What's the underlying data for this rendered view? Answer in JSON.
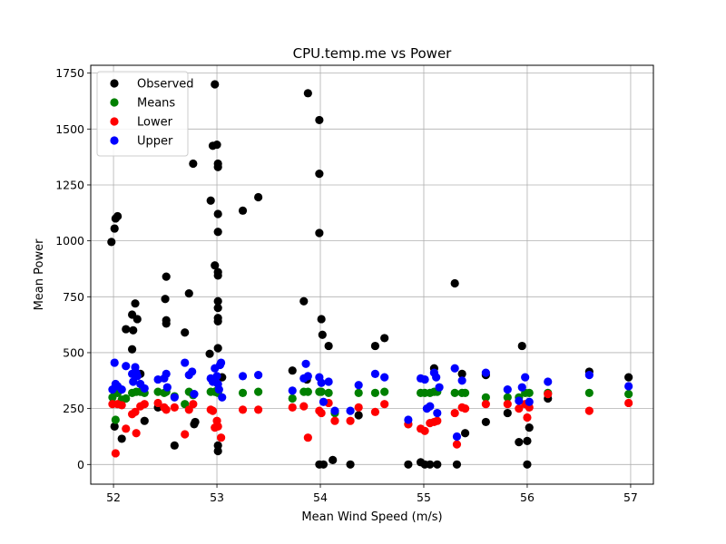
{
  "chart_data": {
    "type": "scatter",
    "title": "CPU.temp.me vs Power",
    "xlabel": "Mean Wind Speed (m/s)",
    "ylabel": "Mean Power",
    "xlim": [
      51.78,
      57.22
    ],
    "ylim": [
      -88,
      1785
    ],
    "xticks": [
      52,
      53,
      54,
      55,
      56,
      57
    ],
    "yticks": [
      0,
      250,
      500,
      750,
      1000,
      1250,
      1500,
      1750
    ],
    "grid": true,
    "legend_position": "top-left",
    "series": [
      {
        "name": "Observed",
        "color": "#000000",
        "points": [
          [
            51.98,
            995
          ],
          [
            52.01,
            1055
          ],
          [
            52.02,
            1100
          ],
          [
            52.04,
            1110
          ],
          [
            52.01,
            170
          ],
          [
            52.08,
            115
          ],
          [
            52.12,
            605
          ],
          [
            52.18,
            515
          ],
          [
            52.19,
            600
          ],
          [
            52.18,
            670
          ],
          [
            52.21,
            720
          ],
          [
            52.23,
            650
          ],
          [
            52.26,
            405
          ],
          [
            52.3,
            195
          ],
          [
            52.43,
            255
          ],
          [
            52.5,
            740
          ],
          [
            52.51,
            840
          ],
          [
            52.51,
            645
          ],
          [
            52.51,
            630
          ],
          [
            52.59,
            85
          ],
          [
            52.69,
            590
          ],
          [
            52.73,
            765
          ],
          [
            52.77,
            1345
          ],
          [
            52.78,
            180
          ],
          [
            52.79,
            190
          ],
          [
            52.94,
            1180
          ],
          [
            52.93,
            495
          ],
          [
            52.96,
            1425
          ],
          [
            52.98,
            1700
          ],
          [
            53.0,
            1430
          ],
          [
            52.98,
            890
          ],
          [
            53.01,
            860
          ],
          [
            53.01,
            845
          ],
          [
            53.01,
            1345
          ],
          [
            53.01,
            1330
          ],
          [
            53.01,
            1120
          ],
          [
            53.01,
            1040
          ],
          [
            53.01,
            730
          ],
          [
            53.01,
            700
          ],
          [
            53.01,
            655
          ],
          [
            53.01,
            640
          ],
          [
            53.01,
            520
          ],
          [
            53.01,
            85
          ],
          [
            53.01,
            60
          ],
          [
            53.05,
            390
          ],
          [
            53.25,
            1135
          ],
          [
            53.4,
            1195
          ],
          [
            53.73,
            420
          ],
          [
            53.84,
            730
          ],
          [
            53.88,
            1660
          ],
          [
            53.87,
            380
          ],
          [
            53.99,
            1540
          ],
          [
            53.99,
            1300
          ],
          [
            53.99,
            1035
          ],
          [
            54.01,
            650
          ],
          [
            54.02,
            580
          ],
          [
            54.08,
            530
          ],
          [
            53.99,
            0
          ],
          [
            54.03,
            0
          ],
          [
            54.12,
            20
          ],
          [
            54.29,
            0
          ],
          [
            54.37,
            220
          ],
          [
            54.53,
            530
          ],
          [
            54.62,
            565
          ],
          [
            54.85,
            0
          ],
          [
            54.97,
            10
          ],
          [
            55.01,
            0
          ],
          [
            55.06,
            0
          ],
          [
            55.1,
            430
          ],
          [
            55.13,
            0
          ],
          [
            55.3,
            810
          ],
          [
            55.32,
            0
          ],
          [
            55.37,
            405
          ],
          [
            55.4,
            140
          ],
          [
            55.6,
            400
          ],
          [
            55.6,
            190
          ],
          [
            55.81,
            230
          ],
          [
            55.92,
            100
          ],
          [
            55.95,
            530
          ],
          [
            56.0,
            105
          ],
          [
            56.0,
            0
          ],
          [
            56.02,
            165
          ],
          [
            56.2,
            295
          ],
          [
            56.6,
            415
          ],
          [
            56.98,
            390
          ]
        ]
      },
      {
        "name": "Means",
        "color": "#008000",
        "points": [
          [
            51.99,
            300
          ],
          [
            52.02,
            200
          ],
          [
            52.04,
            320
          ],
          [
            52.08,
            290
          ],
          [
            52.12,
            295
          ],
          [
            52.18,
            320
          ],
          [
            52.22,
            325
          ],
          [
            52.26,
            325
          ],
          [
            52.3,
            320
          ],
          [
            52.43,
            325
          ],
          [
            52.49,
            320
          ],
          [
            52.51,
            325
          ],
          [
            52.59,
            305
          ],
          [
            52.69,
            270
          ],
          [
            52.73,
            325
          ],
          [
            52.77,
            310
          ],
          [
            52.94,
            325
          ],
          [
            52.98,
            325
          ],
          [
            53.0,
            330
          ],
          [
            53.01,
            320
          ],
          [
            53.25,
            320
          ],
          [
            53.4,
            325
          ],
          [
            53.73,
            295
          ],
          [
            53.84,
            325
          ],
          [
            53.88,
            325
          ],
          [
            53.99,
            325
          ],
          [
            54.01,
            325
          ],
          [
            54.08,
            320
          ],
          [
            54.14,
            230
          ],
          [
            54.37,
            320
          ],
          [
            54.53,
            320
          ],
          [
            54.62,
            325
          ],
          [
            54.85,
            180
          ],
          [
            54.97,
            320
          ],
          [
            55.01,
            320
          ],
          [
            55.06,
            320
          ],
          [
            55.1,
            325
          ],
          [
            55.13,
            325
          ],
          [
            55.3,
            320
          ],
          [
            55.37,
            320
          ],
          [
            55.4,
            320
          ],
          [
            55.6,
            300
          ],
          [
            55.81,
            300
          ],
          [
            55.92,
            300
          ],
          [
            55.98,
            320
          ],
          [
            56.02,
            320
          ],
          [
            56.2,
            320
          ],
          [
            56.6,
            320
          ],
          [
            56.98,
            315
          ]
        ]
      },
      {
        "name": "Lower",
        "color": "#ff0000",
        "points": [
          [
            51.99,
            270
          ],
          [
            52.02,
            50
          ],
          [
            52.04,
            270
          ],
          [
            52.08,
            265
          ],
          [
            52.12,
            160
          ],
          [
            52.18,
            225
          ],
          [
            52.21,
            235
          ],
          [
            52.22,
            140
          ],
          [
            52.26,
            260
          ],
          [
            52.3,
            270
          ],
          [
            52.43,
            275
          ],
          [
            52.49,
            255
          ],
          [
            52.51,
            245
          ],
          [
            52.59,
            255
          ],
          [
            52.69,
            135
          ],
          [
            52.73,
            245
          ],
          [
            52.77,
            270
          ],
          [
            52.94,
            245
          ],
          [
            52.96,
            240
          ],
          [
            52.98,
            165
          ],
          [
            53.0,
            195
          ],
          [
            53.01,
            170
          ],
          [
            53.04,
            120
          ],
          [
            53.25,
            245
          ],
          [
            53.4,
            245
          ],
          [
            53.73,
            255
          ],
          [
            53.84,
            260
          ],
          [
            53.88,
            120
          ],
          [
            53.99,
            240
          ],
          [
            54.01,
            230
          ],
          [
            54.08,
            275
          ],
          [
            54.14,
            195
          ],
          [
            54.29,
            195
          ],
          [
            54.37,
            255
          ],
          [
            54.53,
            235
          ],
          [
            54.62,
            270
          ],
          [
            54.85,
            180
          ],
          [
            54.97,
            160
          ],
          [
            55.01,
            150
          ],
          [
            55.06,
            185
          ],
          [
            55.1,
            190
          ],
          [
            55.13,
            195
          ],
          [
            55.3,
            230
          ],
          [
            55.32,
            90
          ],
          [
            55.37,
            255
          ],
          [
            55.4,
            250
          ],
          [
            55.6,
            270
          ],
          [
            55.81,
            270
          ],
          [
            55.92,
            250
          ],
          [
            55.98,
            270
          ],
          [
            56.0,
            210
          ],
          [
            56.02,
            255
          ],
          [
            56.2,
            315
          ],
          [
            56.6,
            240
          ],
          [
            56.98,
            275
          ]
        ]
      },
      {
        "name": "Upper",
        "color": "#0000ff",
        "points": [
          [
            51.99,
            335
          ],
          [
            52.01,
            455
          ],
          [
            52.02,
            360
          ],
          [
            52.04,
            350
          ],
          [
            52.08,
            335
          ],
          [
            52.12,
            440
          ],
          [
            52.18,
            405
          ],
          [
            52.19,
            370
          ],
          [
            52.21,
            435
          ],
          [
            52.22,
            410
          ],
          [
            52.23,
            395
          ],
          [
            52.26,
            360
          ],
          [
            52.3,
            340
          ],
          [
            52.43,
            380
          ],
          [
            52.49,
            385
          ],
          [
            52.51,
            405
          ],
          [
            52.52,
            345
          ],
          [
            52.59,
            300
          ],
          [
            52.69,
            455
          ],
          [
            52.73,
            400
          ],
          [
            52.76,
            415
          ],
          [
            52.78,
            315
          ],
          [
            52.94,
            385
          ],
          [
            52.96,
            370
          ],
          [
            52.98,
            430
          ],
          [
            53.0,
            395
          ],
          [
            53.01,
            360
          ],
          [
            53.02,
            335
          ],
          [
            53.03,
            445
          ],
          [
            53.04,
            455
          ],
          [
            53.05,
            300
          ],
          [
            53.25,
            395
          ],
          [
            53.4,
            400
          ],
          [
            53.73,
            330
          ],
          [
            53.84,
            385
          ],
          [
            53.86,
            450
          ],
          [
            53.88,
            395
          ],
          [
            53.99,
            390
          ],
          [
            54.01,
            365
          ],
          [
            54.03,
            280
          ],
          [
            54.08,
            370
          ],
          [
            54.14,
            240
          ],
          [
            54.29,
            240
          ],
          [
            54.37,
            355
          ],
          [
            54.53,
            405
          ],
          [
            54.62,
            390
          ],
          [
            54.85,
            200
          ],
          [
            54.97,
            385
          ],
          [
            55.01,
            380
          ],
          [
            55.03,
            250
          ],
          [
            55.06,
            260
          ],
          [
            55.1,
            410
          ],
          [
            55.12,
            390
          ],
          [
            55.13,
            230
          ],
          [
            55.15,
            345
          ],
          [
            55.3,
            430
          ],
          [
            55.32,
            125
          ],
          [
            55.37,
            375
          ],
          [
            55.6,
            410
          ],
          [
            55.81,
            335
          ],
          [
            55.92,
            285
          ],
          [
            55.95,
            345
          ],
          [
            55.98,
            390
          ],
          [
            56.02,
            280
          ],
          [
            56.2,
            370
          ],
          [
            56.6,
            400
          ],
          [
            56.98,
            350
          ]
        ]
      }
    ]
  }
}
